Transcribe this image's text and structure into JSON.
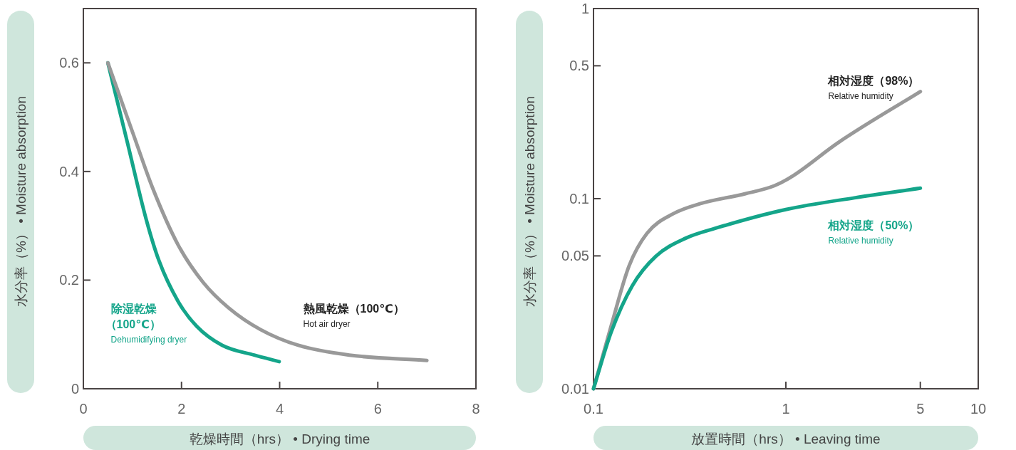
{
  "chart_data": [
    {
      "type": "line",
      "xlabel": "乾燥時間（hrs） • Drying time",
      "ylabel": "水分率（%） • Moisture absorption",
      "xlim": [
        0,
        8
      ],
      "xticks": [
        0,
        2,
        4,
        6,
        8
      ],
      "ylim": [
        0,
        0.7
      ],
      "yticks": [
        0,
        0.2,
        0.4,
        0.6
      ],
      "grid": false,
      "series": [
        {
          "name": "除湿乾燥（100℃）",
          "color": "#14a58a",
          "x": [
            0.5,
            0.89,
            1.28,
            1.54,
            1.93,
            2.31,
            2.83,
            3.48,
            3.99
          ],
          "values": [
            0.6,
            0.456,
            0.312,
            0.236,
            0.161,
            0.115,
            0.08,
            0.062,
            0.05
          ]
        },
        {
          "name": "熱風乾燥（100℃）",
          "color": "#999999",
          "x": [
            0.5,
            1.02,
            1.41,
            1.93,
            2.44,
            2.96,
            3.61,
            4.38,
            5.42,
            7.0
          ],
          "values": [
            0.6,
            0.468,
            0.37,
            0.265,
            0.196,
            0.149,
            0.109,
            0.08,
            0.062,
            0.052
          ]
        }
      ],
      "annotations": [
        "Dehumidifying dryer",
        "Hot air dryer"
      ]
    },
    {
      "type": "line",
      "xlabel": "放置時間（hrs） • Leaving time",
      "ylabel": "水分率（%） • Moisture absorption",
      "log": "xy",
      "xlim": [
        0.1,
        10
      ],
      "xticks": [
        0.1,
        1,
        5,
        10
      ],
      "ylim": [
        0.01,
        1
      ],
      "yticks": [
        0.01,
        0.05,
        0.1,
        0.5,
        1
      ],
      "grid": false,
      "series": [
        {
          "name": "相対湿度（98%）",
          "color": "#999999",
          "x": [
            0.1,
            0.1237,
            0.153,
            0.19,
            0.261,
            0.36,
            0.612,
            0.873,
            1.09,
            1.87,
            5
          ],
          "values": [
            0.01,
            0.0215,
            0.0442,
            0.0658,
            0.0835,
            0.0942,
            0.106,
            0.117,
            0.132,
            0.197,
            0.366
          ]
        },
        {
          "name": "相対湿度（50%）",
          "color": "#14a58a",
          "x": [
            0.1,
            0.1237,
            0.159,
            0.211,
            0.301,
            0.429,
            1,
            2.27,
            5
          ],
          "values": [
            0.01,
            0.0199,
            0.0348,
            0.0498,
            0.0619,
            0.0698,
            0.0877,
            0.101,
            0.1135
          ]
        }
      ],
      "annotations": [
        "Relative humidity",
        "Relative humidity"
      ]
    }
  ]
}
